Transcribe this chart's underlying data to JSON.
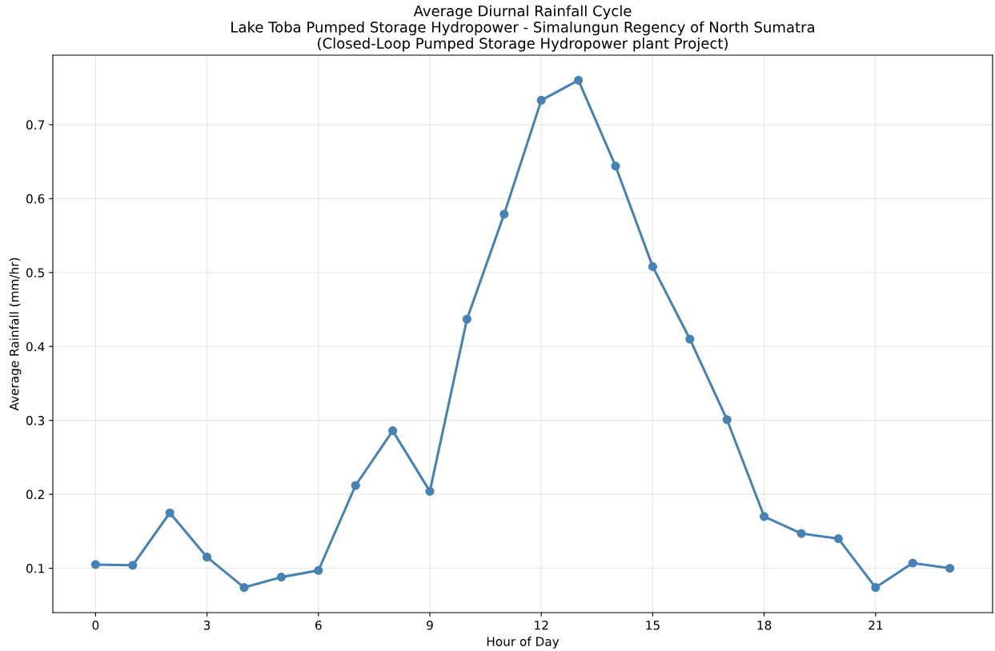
{
  "chart_data": {
    "type": "line",
    "title": "Average Diurnal Rainfall Cycle\nLake Toba Pumped Storage Hydropower - Simalungun Regency of North Sumatra\n(Closed-Loop Pumped Storage Hydropower plant Project)",
    "xlabel": "Hour of Day",
    "ylabel": "Average Rainfall (mm/hr)",
    "x": [
      0,
      1,
      2,
      3,
      4,
      5,
      6,
      7,
      8,
      9,
      10,
      11,
      12,
      13,
      14,
      15,
      16,
      17,
      18,
      19,
      20,
      21,
      22,
      23
    ],
    "series": [
      {
        "color": "#4682b4",
        "values": [
          0.105,
          0.104,
          0.175,
          0.115,
          0.074,
          0.088,
          0.097,
          0.212,
          0.286,
          0.204,
          0.437,
          0.579,
          0.733,
          0.76,
          0.644,
          0.508,
          0.41,
          0.301,
          0.17,
          0.147,
          0.14,
          0.074,
          0.107,
          0.1
        ]
      }
    ],
    "xlim": [
      -1.15,
      24.15
    ],
    "xticks": [
      0,
      3,
      6,
      9,
      12,
      15,
      18,
      21
    ],
    "ylim": [
      0.04,
      0.794
    ],
    "yticks": [
      0.1,
      0.2,
      0.3,
      0.4,
      0.5,
      0.6,
      0.7
    ],
    "grid": true,
    "marker": "circle",
    "line_style": "solid"
  }
}
